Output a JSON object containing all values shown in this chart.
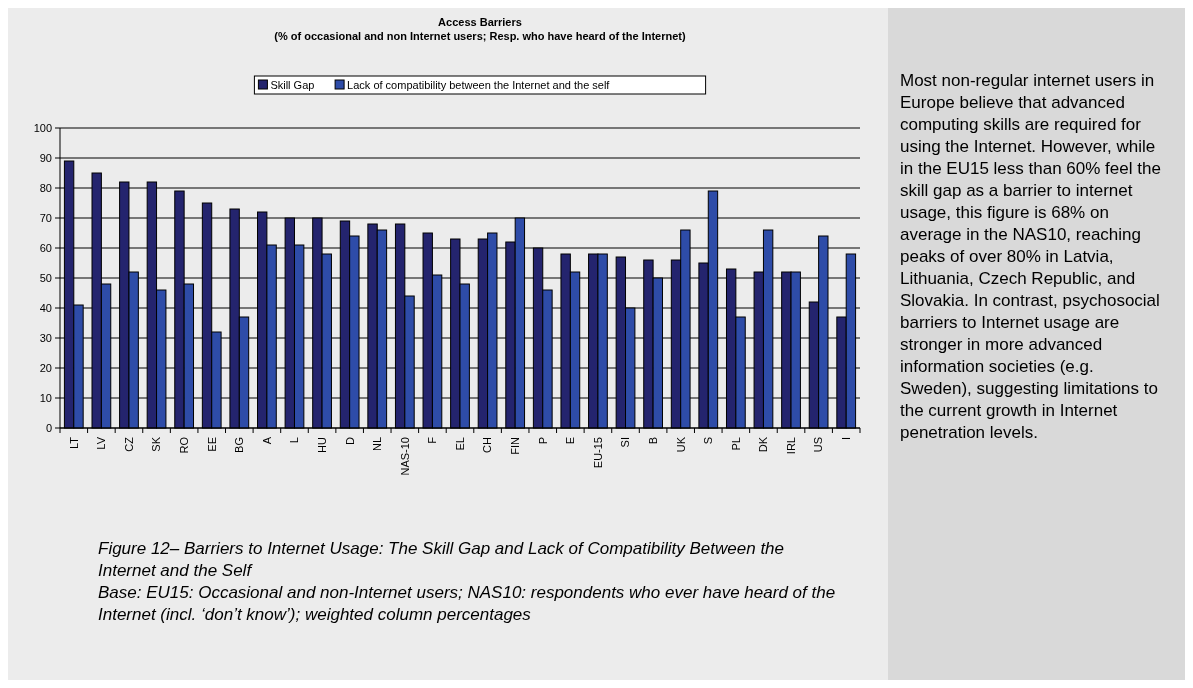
{
  "chart_data": {
    "type": "bar",
    "title": "Access Barriers",
    "subtitle": "(% of occasional and non Internet users; Resp. who have heard of the Internet)",
    "categories": [
      "LT",
      "LV",
      "CZ",
      "SK",
      "RO",
      "EE",
      "BG",
      "A",
      "L",
      "HU",
      "D",
      "NL",
      "NAS-10",
      "F",
      "EL",
      "CH",
      "FIN",
      "P",
      "E",
      "EU-15",
      "SI",
      "B",
      "UK",
      "S",
      "PL",
      "DK",
      "IRL",
      "US",
      "I"
    ],
    "series": [
      {
        "name": "Skill Gap",
        "color": "#24246e",
        "values": [
          89,
          85,
          82,
          82,
          79,
          75,
          73,
          72,
          70,
          70,
          69,
          68,
          68,
          65,
          63,
          63,
          62,
          60,
          58,
          58,
          57,
          56,
          56,
          55,
          53,
          52,
          52,
          42,
          37
        ]
      },
      {
        "name": "Lack of compatibility between the Internet and the self",
        "color": "#2e4ca8",
        "values": [
          41,
          48,
          52,
          46,
          48,
          32,
          37,
          61,
          61,
          58,
          64,
          66,
          44,
          51,
          48,
          65,
          70,
          46,
          52,
          58,
          40,
          50,
          66,
          79,
          37,
          66,
          52,
          64,
          58
        ]
      }
    ],
    "ylim": [
      0,
      100
    ],
    "yticks": [
      0,
      10,
      20,
      30,
      40,
      50,
      60,
      70,
      80,
      90,
      100
    ],
    "grid": "y",
    "legend": "top",
    "annotations": [
      "Figure 12– Barriers to Internet Usage: The Skill Gap and Lack of Compatibility Between the Internet and the Self",
      "Base: EU15: Occasional and non-Internet users; NAS10: respondents who ever have heard of the Internet (incl. ‘don’t know’); weighted column percentages",
      "Most non-regular internet users in Europe believe that advanced computing skills are required for using the Internet. However, while in the EU15 less than 60% feel the skill gap as a barrier to internet usage, this figure is 68% on average in the NAS10, reaching peaks of over 80% in Latvia, Lithuania, Czech Republic, and Slovakia. In contrast, psychosocial barriers to Internet usage are stronger in more advanced information societies (e.g. Sweden), suggesting limitations to the current growth in Internet penetration levels."
    ]
  }
}
